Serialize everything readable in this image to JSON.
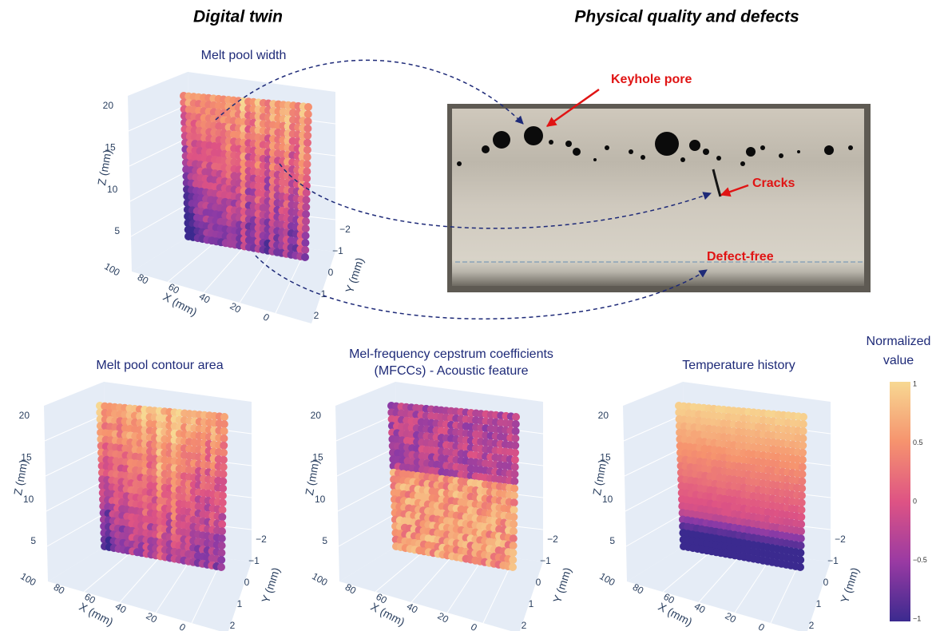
{
  "headings": {
    "digital_twin": "Digital twin",
    "physical": "Physical quality and defects"
  },
  "panels": [
    {
      "title_lines": [
        "Melt pool width"
      ],
      "z_label": "Z (mm)",
      "x_label": "X (mm)",
      "y_label": "Y (mm)",
      "z_ticks": [
        "5",
        "10",
        "15",
        "20"
      ],
      "x_ticks": [
        "100",
        "80",
        "60",
        "40",
        "20",
        "0"
      ],
      "y_ticks": [
        "−2",
        "−1",
        "0",
        "1",
        "2"
      ]
    },
    {
      "title_lines": [
        "Melt pool contour area"
      ],
      "z_label": "Z (mm)",
      "x_label": "X (mm)",
      "y_label": "Y (mm)",
      "z_ticks": [
        "5",
        "10",
        "15",
        "20"
      ],
      "x_ticks": [
        "100",
        "80",
        "60",
        "40",
        "20",
        "0"
      ],
      "y_ticks": [
        "−2",
        "−1",
        "0",
        "1",
        "2"
      ]
    },
    {
      "title_lines": [
        "Mel-frequency cepstrum coefficients",
        "(MFCCs) - Acoustic feature"
      ],
      "z_label": "Z (mm)",
      "x_label": "X (mm)",
      "y_label": "Y (mm)",
      "z_ticks": [
        "5",
        "10",
        "15",
        "20"
      ],
      "x_ticks": [
        "100",
        "80",
        "60",
        "40",
        "20",
        "0"
      ],
      "y_ticks": [
        "−2",
        "−1",
        "0",
        "1",
        "2"
      ]
    },
    {
      "title_lines": [
        "Temperature history"
      ],
      "z_label": "Z (mm)",
      "x_label": "X (mm)",
      "y_label": "Y (mm)",
      "z_ticks": [
        "5",
        "10",
        "15",
        "20"
      ],
      "x_ticks": [
        "100",
        "80",
        "60",
        "40",
        "20",
        "0"
      ],
      "y_ticks": [
        "−2",
        "−1",
        "0",
        "1",
        "2"
      ]
    }
  ],
  "micrograph": {
    "labels": [
      "Keyhole pore",
      "Cracks",
      "Defect-free"
    ]
  },
  "colorbar": {
    "title_lines": [
      "Normalized",
      "value"
    ],
    "ticks": [
      "1",
      "0.5",
      "0",
      "−0.5",
      "−1"
    ]
  }
}
